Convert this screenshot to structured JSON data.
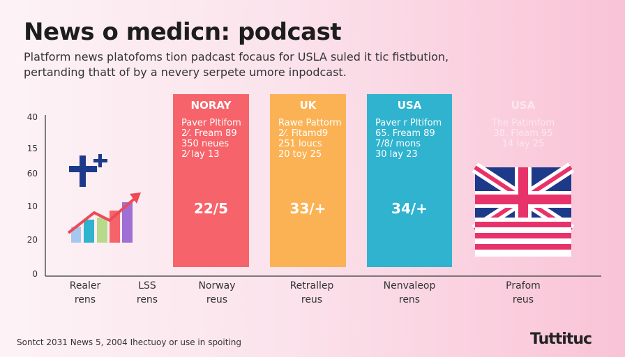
{
  "header": {
    "title": "News o medicn: podcast",
    "subtitle": [
      "Platform news platofoms tion padcast focaus for USLA suled it tic fistbution,",
      "pertanding thatt of by a nevery serpete umore inpodcast."
    ]
  },
  "axis_labels": [
    "40",
    "15",
    "60",
    "10",
    "20",
    "0"
  ],
  "panels": [
    {
      "heading": "NORAY",
      "lines": [
        "Paver Pltifom",
        "2⁄. Fream 89",
        "350 neues",
        "2⁄ lay 13"
      ],
      "big": "22/5",
      "color": "#f7636a"
    },
    {
      "heading": "UK",
      "lines": [
        "Rawe Pattorm",
        "2⁄. Fitamd9",
        "251 loucs",
        "20 toy 25"
      ],
      "big": "33/+",
      "color": "#fbb255"
    },
    {
      "heading": "USA",
      "lines": [
        "Paver r Pltifom",
        "65. Fream 89",
        "7/8/ mons",
        "30 lay 23"
      ],
      "big": "34/+",
      "color": "#2fb3cf"
    },
    {
      "heading": "USA",
      "lines": [
        "The Patimfom",
        "38. Fleam 95",
        "14 lay 25"
      ]
    }
  ],
  "bottom_labels": [
    [
      "Realer",
      "rens"
    ],
    [
      "LSS",
      "rens"
    ],
    [
      "Norway",
      "reus"
    ],
    [
      "Retrallep",
      "reus"
    ],
    [
      "Nenvaleop",
      "rens"
    ],
    [
      "Prafom",
      "reus"
    ]
  ],
  "footer": {
    "source": "Sontct 2031 News 5, 2004 Ihectuoy or use in spoiting",
    "logo": "Tuttituc"
  }
}
